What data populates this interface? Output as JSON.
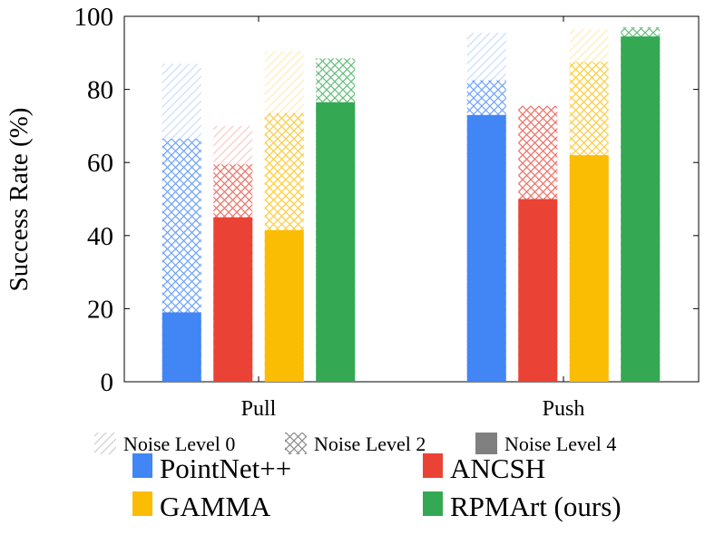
{
  "chart_data": {
    "type": "bar",
    "stacked_overlay": true,
    "ylabel": "Success Rate (%)",
    "ylim": [
      0,
      100
    ],
    "yticks": [
      0,
      20,
      40,
      60,
      80,
      100
    ],
    "grid": false,
    "categories": [
      "Pull",
      "Push"
    ],
    "noise_levels": [
      {
        "name": "Noise Level 0",
        "pattern": "diagonal-hatch"
      },
      {
        "name": "Noise Level 2",
        "pattern": "crosshatch"
      },
      {
        "name": "Noise Level 4",
        "pattern": "solid"
      }
    ],
    "series": [
      {
        "name": "PointNet++",
        "color": "#4285F4",
        "noise0": [
          87,
          95.5
        ],
        "noise2": [
          66.5,
          82.5
        ],
        "noise4": [
          19,
          73
        ]
      },
      {
        "name": "ANCSH",
        "color": "#EA4335",
        "noise0": [
          70,
          75.5
        ],
        "noise2": [
          59.5,
          75.5
        ],
        "noise4": [
          45,
          50
        ]
      },
      {
        "name": "GAMMA",
        "color": "#FBBC04",
        "noise0": [
          90.5,
          96.5
        ],
        "noise2": [
          73.5,
          87.5
        ],
        "noise4": [
          41.5,
          62
        ]
      },
      {
        "name": "RPMArt (ours)",
        "color": "#34A853",
        "noise0": [
          88.5,
          97
        ],
        "noise2": [
          88.5,
          97
        ],
        "noise4": [
          76.5,
          94.5
        ]
      }
    ],
    "legend_placement": "bottom"
  }
}
